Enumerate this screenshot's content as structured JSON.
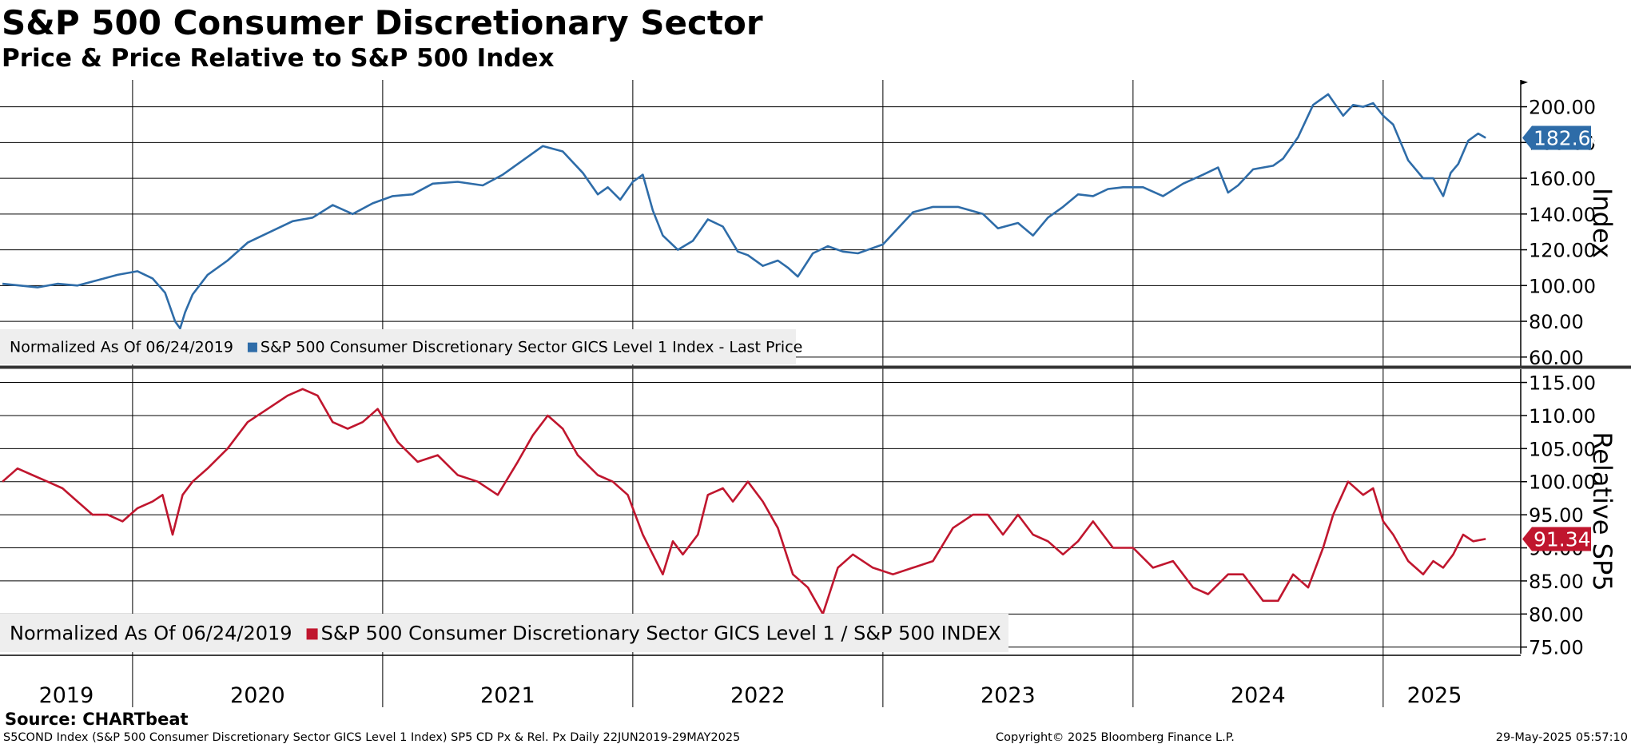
{
  "header": {
    "title": "S&P 500 Consumer Discretionary Sector",
    "subtitle": "Price & Price Relative to S&P 500 Index"
  },
  "footer": {
    "source": "Source: CHARTbeat",
    "description": "S5COND Index (S&P 500 Consumer Discretionary Sector GICS Level 1 Index) SP5 CD Px & Rel. Px  Daily 22JUN2019-29MAY2025",
    "copyright": "Copyright© 2025 Bloomberg Finance L.P.",
    "timestamp": "29-May-2025 05:57:10"
  },
  "colors": {
    "price_line": "#2e6ca8",
    "relative_line": "#c0162e",
    "grid": "#000000",
    "legend_bg": "#eeeeee"
  },
  "chart_data": [
    {
      "type": "line",
      "title": "S&P 500 Consumer Discretionary Sector Price",
      "ylabel": "Index",
      "ylim": [
        55,
        215
      ],
      "yticks": [
        60,
        80,
        100,
        120,
        140,
        160,
        180,
        200
      ],
      "ytick_labels": [
        "60.00",
        "80.00",
        "100.00",
        "120.00",
        "140.00",
        "160.00",
        "180.00",
        "200.00"
      ],
      "xlim": [
        2019.47,
        2025.55
      ],
      "legend": {
        "note": "Normalized As Of 06/24/2019",
        "label": "S&P 500 Consumer Discretionary Sector GICS Level 1 Index - Last Price"
      },
      "last_value_label": "182.60",
      "series": [
        {
          "name": "S&P 500 Consumer Discretionary Sector GICS Level 1 Index - Last Price",
          "x": [
            2019.48,
            2019.55,
            2019.62,
            2019.7,
            2019.78,
            2019.86,
            2019.94,
            2020.02,
            2020.08,
            2020.13,
            2020.17,
            2020.19,
            2020.21,
            2020.24,
            2020.3,
            2020.38,
            2020.46,
            2020.55,
            2020.64,
            2020.72,
            2020.8,
            2020.88,
            2020.96,
            2021.04,
            2021.12,
            2021.2,
            2021.3,
            2021.4,
            2021.48,
            2021.56,
            2021.64,
            2021.72,
            2021.8,
            2021.86,
            2021.9,
            2021.95,
            2022.0,
            2022.04,
            2022.08,
            2022.12,
            2022.18,
            2022.24,
            2022.3,
            2022.36,
            2022.42,
            2022.46,
            2022.52,
            2022.58,
            2022.62,
            2022.66,
            2022.72,
            2022.78,
            2022.84,
            2022.9,
            2022.96,
            2023.0,
            2023.06,
            2023.12,
            2023.2,
            2023.3,
            2023.4,
            2023.46,
            2023.54,
            2023.6,
            2023.66,
            2023.72,
            2023.78,
            2023.84,
            2023.9,
            2023.96,
            2024.04,
            2024.12,
            2024.2,
            2024.28,
            2024.34,
            2024.38,
            2024.42,
            2024.48,
            2024.56,
            2024.6,
            2024.66,
            2024.72,
            2024.78,
            2024.84,
            2024.88,
            2024.92,
            2024.96,
            2025.0,
            2025.04,
            2025.1,
            2025.16,
            2025.2,
            2025.24,
            2025.27,
            2025.3,
            2025.34,
            2025.38,
            2025.41
          ],
          "values": [
            101,
            100,
            99,
            101,
            100,
            103,
            106,
            108,
            104,
            96,
            80,
            76,
            85,
            95,
            106,
            114,
            124,
            130,
            136,
            138,
            145,
            140,
            146,
            150,
            151,
            157,
            158,
            156,
            162,
            170,
            178,
            175,
            163,
            151,
            155,
            148,
            158,
            162,
            142,
            128,
            120,
            125,
            137,
            133,
            119,
            117,
            111,
            114,
            110,
            105,
            118,
            122,
            119,
            118,
            121,
            123,
            132,
            141,
            144,
            144,
            140,
            132,
            135,
            128,
            138,
            144,
            151,
            150,
            154,
            155,
            155,
            150,
            157,
            162,
            166,
            152,
            156,
            165,
            167,
            171,
            183,
            201,
            207,
            195,
            201,
            200,
            202,
            195,
            190,
            170,
            160,
            160,
            150,
            163,
            168,
            181,
            185,
            182.6
          ]
        }
      ]
    },
    {
      "type": "line",
      "title": "S&P 500 Consumer Discretionary Sector Relative to S&P 500",
      "ylabel": "Relative SP5",
      "ylim": [
        74,
        117
      ],
      "yticks": [
        75,
        80,
        85,
        90,
        95,
        100,
        105,
        110,
        115
      ],
      "ytick_labels": [
        "75.00",
        "80.00",
        "85.00",
        "90.00",
        "95.00",
        "100.00",
        "105.00",
        "110.00",
        "115.00"
      ],
      "xlim": [
        2019.47,
        2025.55
      ],
      "legend": {
        "note": "Normalized As Of 06/24/2019",
        "label": "S&P 500 Consumer Discretionary Sector GICS Level 1 / S&P 500 INDEX"
      },
      "last_value_label": "91.34",
      "xticks_labels": [
        "2019",
        "2020",
        "2021",
        "2022",
        "2023",
        "2024",
        "2025"
      ],
      "series": [
        {
          "name": "S&P 500 Consumer Discretionary Sector GICS Level 1 / S&P 500 INDEX",
          "x": [
            2019.48,
            2019.54,
            2019.6,
            2019.66,
            2019.72,
            2019.78,
            2019.84,
            2019.9,
            2019.96,
            2020.02,
            2020.08,
            2020.12,
            2020.16,
            2020.2,
            2020.24,
            2020.3,
            2020.38,
            2020.46,
            2020.54,
            2020.62,
            2020.68,
            2020.74,
            2020.8,
            2020.86,
            2020.92,
            2020.98,
            2021.06,
            2021.14,
            2021.22,
            2021.3,
            2021.38,
            2021.46,
            2021.54,
            2021.6,
            2021.66,
            2021.72,
            2021.78,
            2021.86,
            2021.92,
            2021.98,
            2022.04,
            2022.08,
            2022.12,
            2022.16,
            2022.2,
            2022.26,
            2022.3,
            2022.36,
            2022.4,
            2022.46,
            2022.52,
            2022.58,
            2022.64,
            2022.7,
            2022.76,
            2022.82,
            2022.88,
            2022.96,
            2023.04,
            2023.12,
            2023.2,
            2023.28,
            2023.36,
            2023.42,
            2023.48,
            2023.54,
            2023.6,
            2023.66,
            2023.72,
            2023.78,
            2023.84,
            2023.92,
            2024.0,
            2024.08,
            2024.16,
            2024.24,
            2024.3,
            2024.38,
            2024.44,
            2024.52,
            2024.58,
            2024.64,
            2024.7,
            2024.76,
            2024.8,
            2024.86,
            2024.92,
            2024.96,
            2025.0,
            2025.04,
            2025.1,
            2025.16,
            2025.2,
            2025.24,
            2025.28,
            2025.32,
            2025.36,
            2025.41
          ],
          "values": [
            100,
            102,
            101,
            100,
            99,
            97,
            95,
            95,
            94,
            96,
            97,
            98,
            92,
            98,
            100,
            102,
            105,
            109,
            111,
            113,
            114,
            113,
            109,
            108,
            109,
            111,
            106,
            103,
            104,
            101,
            100,
            98,
            103,
            107,
            110,
            108,
            104,
            101,
            100,
            98,
            92,
            89,
            86,
            91,
            89,
            92,
            98,
            99,
            97,
            100,
            97,
            93,
            86,
            84,
            80,
            87,
            89,
            87,
            86,
            87,
            88,
            93,
            95,
            95,
            92,
            95,
            92,
            91,
            89,
            91,
            94,
            90,
            90,
            87,
            88,
            84,
            83,
            86,
            86,
            82,
            82,
            86,
            84,
            90,
            95,
            100,
            98,
            99,
            94,
            92,
            88,
            86,
            88,
            87,
            89,
            92,
            91,
            91.34
          ]
        }
      ]
    }
  ]
}
